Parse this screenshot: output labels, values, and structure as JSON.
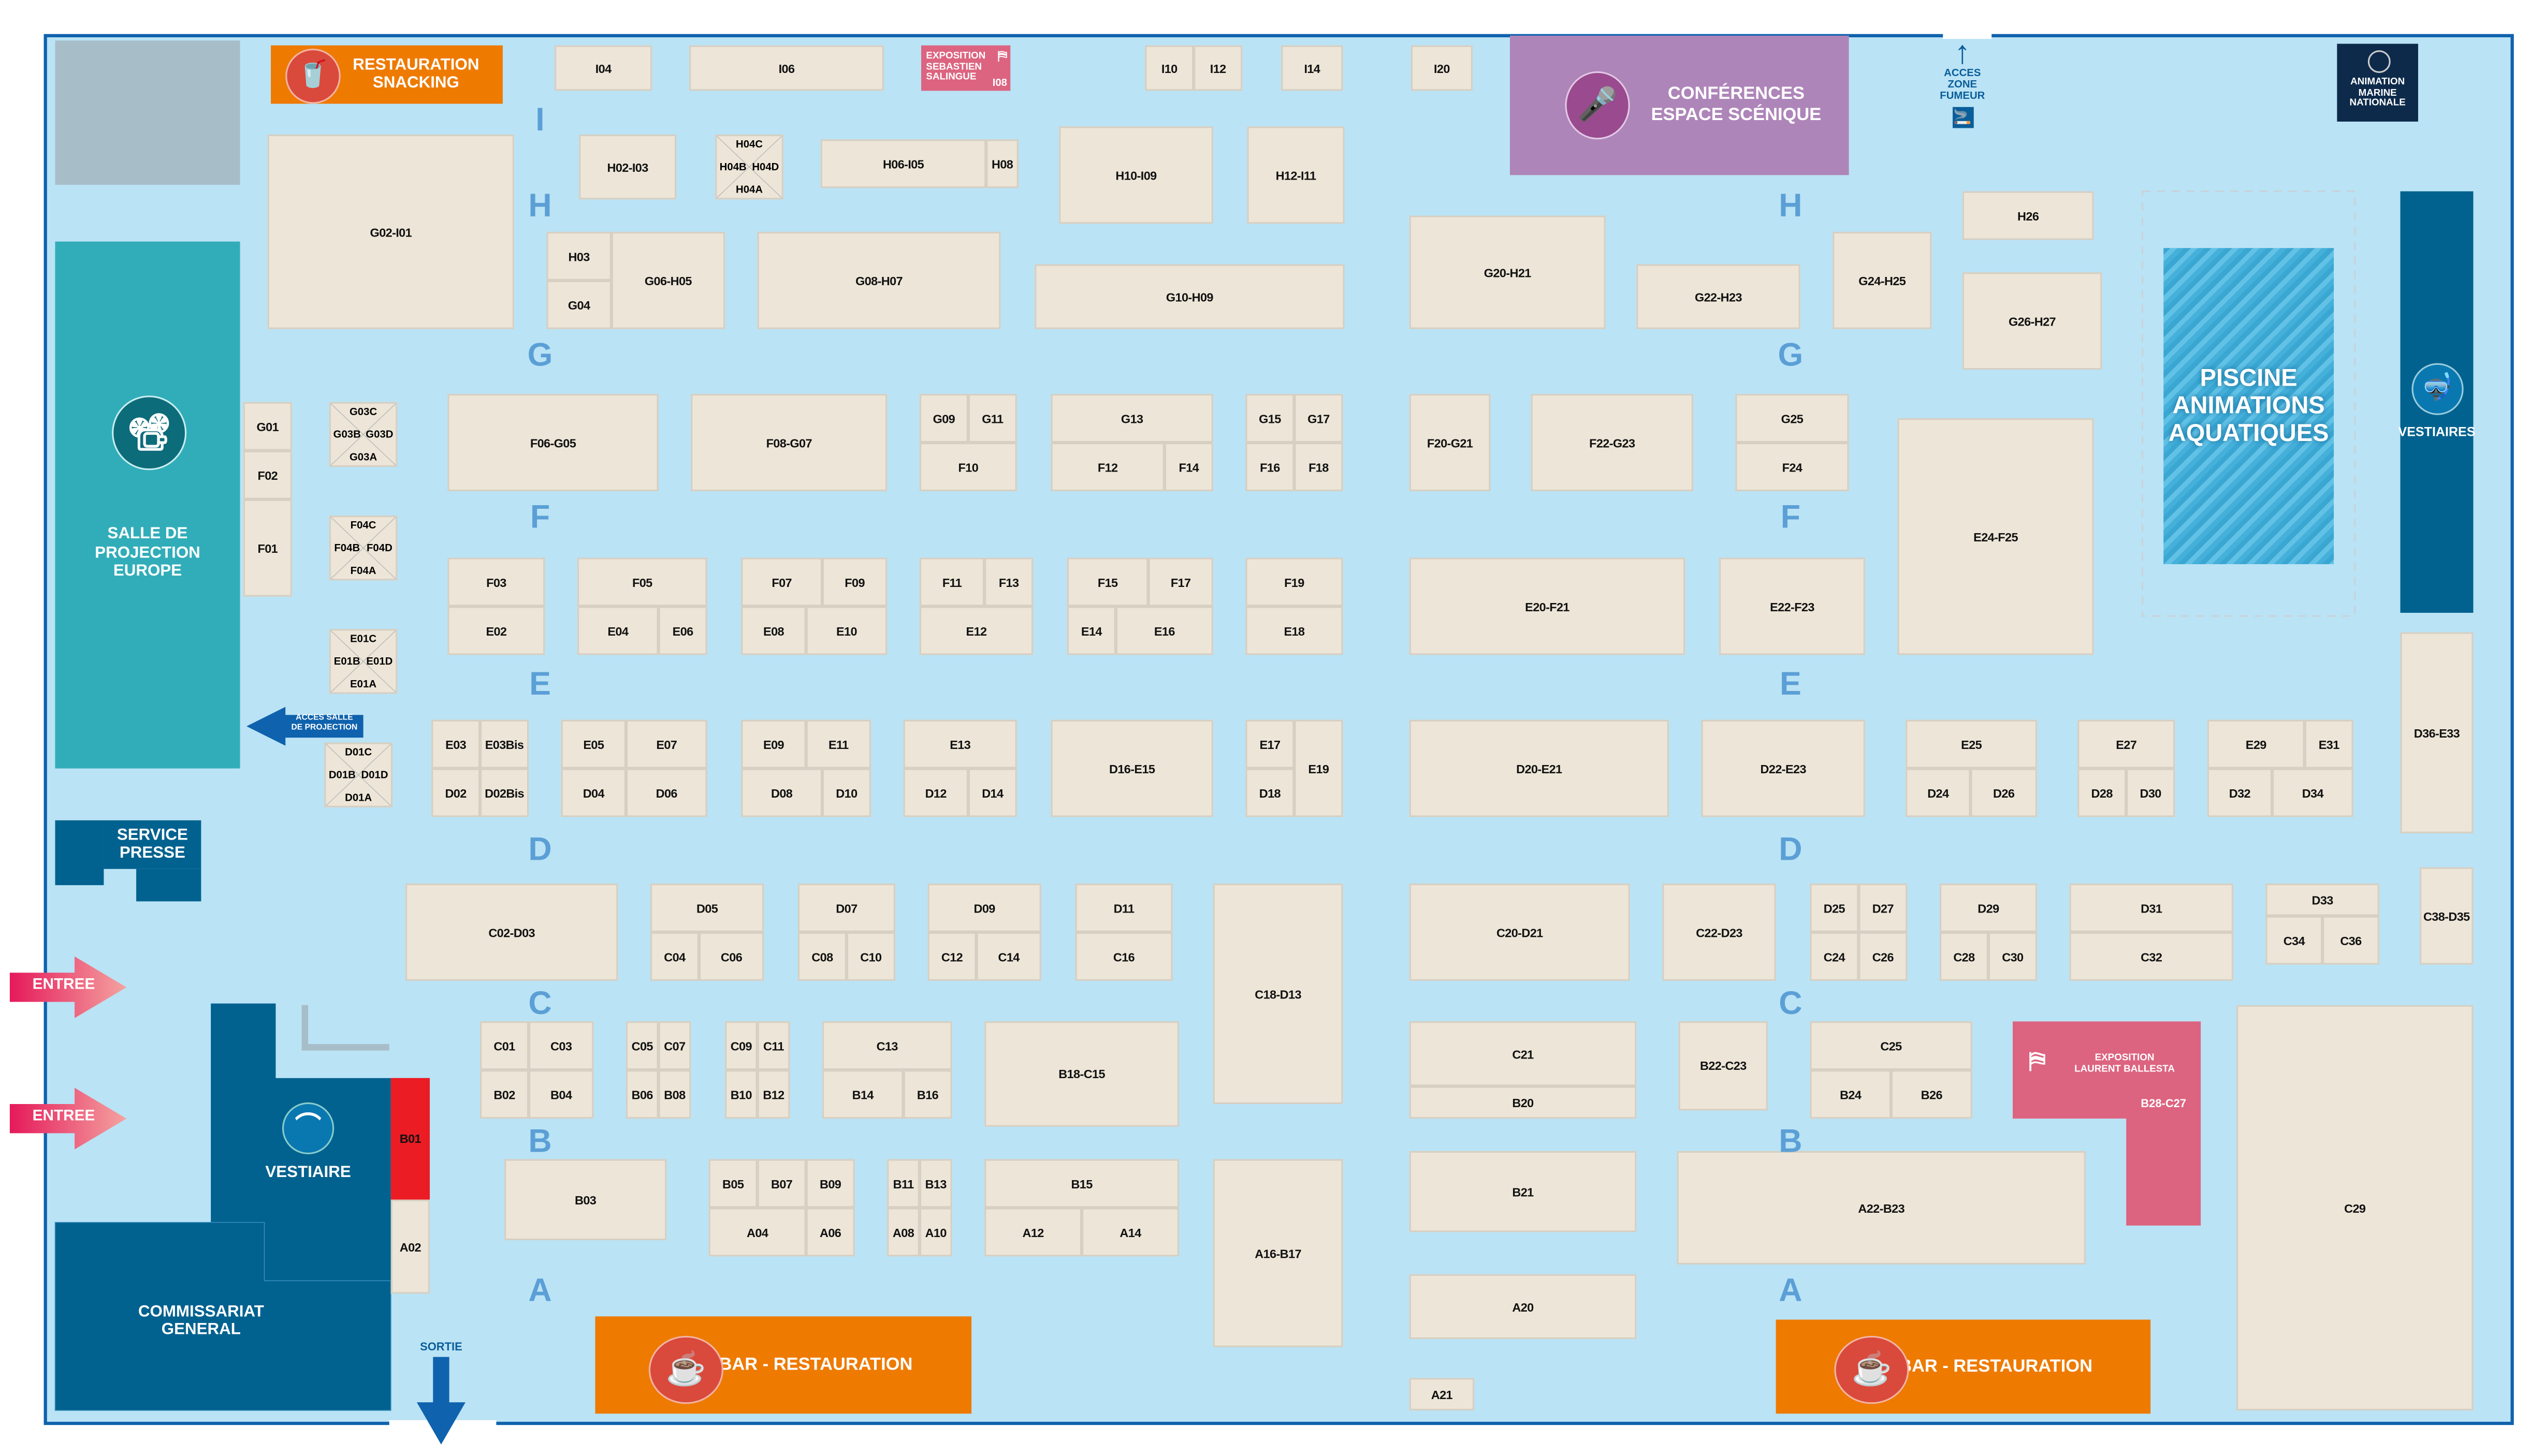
{
  "aisles": [
    "I",
    "H",
    "G",
    "F",
    "E",
    "D",
    "C",
    "B",
    "A"
  ],
  "booths": [
    "I04",
    "I06",
    "I10",
    "I12",
    "I14",
    "I20",
    "G02-I01",
    "H02-I03",
    "H06-I05",
    "H08",
    "H10-I09",
    "H12-I11",
    "H03",
    "G04",
    "G06-H05",
    "G08-H07",
    "G10-H09",
    "G20-H21",
    "G22-H23",
    "G24-H25",
    "H26",
    "G26-H27",
    "G01",
    "F02",
    "F01",
    "F06-G05",
    "F08-G07",
    "G09",
    "G11",
    "F10",
    "G13",
    "F12",
    "F14",
    "G15",
    "G17",
    "F16",
    "F18",
    "F20-G21",
    "F22-G23",
    "G25",
    "F24",
    "E24-F25",
    "F03",
    "E02",
    "F05",
    "E04",
    "E06",
    "F07",
    "F09",
    "E08",
    "E10",
    "F11",
    "F13",
    "E12",
    "F15",
    "F17",
    "E14",
    "E16",
    "F19",
    "E18",
    "E20-F21",
    "E22-F23",
    "E03",
    "E03Bis",
    "D02",
    "D02Bis",
    "E05",
    "E07",
    "D04",
    "D06",
    "E09",
    "E11",
    "D08",
    "D10",
    "E13",
    "D12",
    "D14",
    "D16-E15",
    "E17",
    "D18",
    "E19",
    "D20-E21",
    "D22-E23",
    "E25",
    "D24",
    "D26",
    "E27",
    "D28",
    "D30",
    "E29",
    "E31",
    "D32",
    "D34",
    "D36-E33",
    "C02-D03",
    "D05",
    "C04",
    "C06",
    "D07",
    "C08",
    "C10",
    "D09",
    "C12",
    "C14",
    "D11",
    "C16",
    "C18-D13",
    "C20-D21",
    "C22-D23",
    "D25",
    "D27",
    "C24",
    "C26",
    "D29",
    "C28",
    "C30",
    "D31",
    "C32",
    "D33",
    "C34",
    "C36",
    "C38-D35",
    "C01",
    "C03",
    "B02",
    "B04",
    "C05",
    "C07",
    "B06",
    "B08",
    "C09",
    "C11",
    "B10",
    "B12",
    "C13",
    "B14",
    "B16",
    "B18-C15",
    "C21",
    "B20",
    "B22-C23",
    "C25",
    "B24",
    "B26",
    "C29",
    "A02",
    "B03",
    "B05",
    "B07",
    "B09",
    "A04",
    "A06",
    "B11",
    "B13",
    "A08",
    "A10",
    "B15",
    "A12",
    "A14",
    "A16-B17",
    "B21",
    "A22-B23",
    "A20",
    "A21"
  ],
  "cross_booths": [
    {
      "top": "H04C",
      "left": "H04B",
      "right": "H04D",
      "bottom": "H04A"
    },
    {
      "top": "G03C",
      "left": "G03B",
      "right": "G03D",
      "bottom": "G03A"
    },
    {
      "top": "F04C",
      "left": "F04B",
      "right": "F04D",
      "bottom": "F04A"
    },
    {
      "top": "E01C",
      "left": "E01B",
      "right": "E01D",
      "bottom": "E01A"
    },
    {
      "top": "D01C",
      "left": "D01B",
      "right": "D01D",
      "bottom": "D01A"
    }
  ],
  "zones": {
    "snacking": {
      "line1": "RESTAURATION",
      "line2": "SNACKING",
      "icon": "drink-cup-icon"
    },
    "expo_salingue": {
      "line1": "EXPOSITION",
      "line2": "SEBASTIEN",
      "line3": "SALINGUE",
      "booth": "I08",
      "icon": "easel-icon"
    },
    "conferences": {
      "line1": "CONFÉRENCES",
      "line2": "ESPACE SCÉNIQUE",
      "icon": "microphone-icon"
    },
    "smoking": {
      "line1": "ACCES",
      "line2": "ZONE",
      "line3": "FUMEUR",
      "icon": "smoking-icon"
    },
    "marine": {
      "line1": "ANIMATION",
      "line2": "MARINE",
      "line3": "NATIONALE"
    },
    "projection": {
      "line1": "SALLE DE",
      "line2": "PROJECTION",
      "line3": "EUROPE",
      "icon": "projector-icon"
    },
    "projection_access": {
      "line1": "ACCES SALLE",
      "line2": "DE PROJECTION"
    },
    "presse": {
      "line1": "SERVICE",
      "line2": "PRESSE"
    },
    "entree": "ENTREE",
    "vestiaire": {
      "label": "VESTIAIRE",
      "icon": "hanger-icon"
    },
    "b01": "B01",
    "commissariat": {
      "line1": "COMMISSARIAT",
      "line2": "GENERAL"
    },
    "sortie": "SORTIE",
    "bar": "BAR - RESTAURATION",
    "piscine": {
      "line1": "PISCINE",
      "line2": "ANIMATIONS",
      "line3": "AQUATIQUES"
    },
    "vestiaires": {
      "label": "VESTIAIRES",
      "icon": "fins-icon"
    },
    "expo_ballesta": {
      "line1": "EXPOSITION",
      "line2": "LAURENT BALLESTA",
      "booth": "B28-C27",
      "icon": "easel-icon"
    }
  },
  "colors": {
    "floor": "#bae3f5",
    "booth": "#ede6d8",
    "orange": "#ee7a00",
    "purple": "#ae85b9",
    "teal": "#31adb9",
    "navy": "#01628f",
    "pink": "#dc6480",
    "aisle": "#5b9fd6"
  }
}
